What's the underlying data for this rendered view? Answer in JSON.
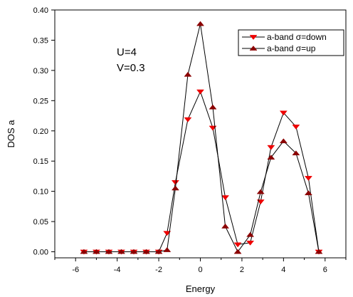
{
  "chart_data": {
    "type": "line",
    "xlabel": "Energy",
    "ylabel": "DOS a",
    "xlim": [
      -7,
      7
    ],
    "ylim": [
      -0.01,
      0.4
    ],
    "xticks": [
      -6,
      -4,
      -2,
      0,
      2,
      4,
      6
    ],
    "xtick_labels": [
      "-6",
      "-4",
      "-2",
      "0",
      "2",
      "4",
      "6"
    ],
    "yticks": [
      0.0,
      0.05,
      0.1,
      0.15,
      0.2,
      0.25,
      0.3,
      0.35,
      0.4
    ],
    "ytick_labels": [
      "0.00",
      "0.05",
      "0.10",
      "0.15",
      "0.20",
      "0.25",
      "0.30",
      "0.35",
      "0.40"
    ],
    "legend_position": "top-right",
    "annotations": [
      "U=4",
      "V=0.3"
    ],
    "x": [
      -5.6,
      -5.0,
      -4.4,
      -3.8,
      -3.2,
      -2.6,
      -2.0,
      -1.6,
      -1.2,
      -0.6,
      0.0,
      0.6,
      1.2,
      1.8,
      2.4,
      2.9,
      3.4,
      4.0,
      4.6,
      5.2,
      5.7
    ],
    "series": [
      {
        "name": "a-band σ=down",
        "color": "#ee0000",
        "marker": "triangle-down",
        "values": [
          0.0,
          0.0,
          0.0,
          0.0,
          0.0,
          0.0,
          0.0,
          0.031,
          0.115,
          0.219,
          0.265,
          0.205,
          0.09,
          0.012,
          0.015,
          0.083,
          0.173,
          0.23,
          0.207,
          0.122,
          0.0
        ]
      },
      {
        "name": "a-band σ=up",
        "color": "#8b0000",
        "marker": "triangle-up",
        "values": [
          0.0,
          0.0,
          0.0,
          0.0,
          0.0,
          0.0,
          0.0,
          0.003,
          0.105,
          0.293,
          0.377,
          0.239,
          0.042,
          0.0,
          0.028,
          0.099,
          0.156,
          0.183,
          0.163,
          0.097,
          0.0
        ]
      }
    ]
  }
}
